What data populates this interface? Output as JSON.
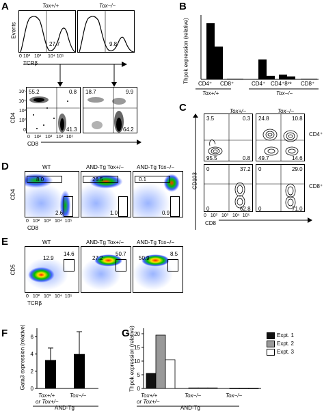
{
  "panels": {
    "A": {
      "label": "A",
      "hist": [
        {
          "genotype": "Tox+/+",
          "value": "27.7"
        },
        {
          "genotype": "Tox−/−",
          "value": "9.8"
        }
      ],
      "ylabel": "Events",
      "xlabel": "TCRβ",
      "ticks": [
        "0",
        "10²",
        "10³",
        "10⁴",
        "10⁵"
      ],
      "dot": [
        {
          "q": [
            "55.2",
            "0.8",
            "",
            "41.3"
          ]
        },
        {
          "q": [
            "18.7",
            "9.9",
            "",
            "64.2"
          ]
        }
      ],
      "dot_ylabel": "CD4",
      "dot_xlabel": "CD8",
      "dot_yticks": [
        "10⁵",
        "10⁴",
        "10³",
        "10²",
        "0"
      ],
      "dot_xticks": [
        "0",
        "10²",
        "10³",
        "10⁴",
        "10⁵"
      ]
    },
    "B": {
      "label": "B",
      "ylabel": "Thpok expression (relative)",
      "groups": [
        "CD4⁺",
        "CD8⁺",
        "CD4⁺",
        "CD4⁺8ⁱⁿᵗ",
        "CD8⁺"
      ],
      "genotypes": [
        "Tox+/+",
        "Tox−/−"
      ]
    },
    "C": {
      "label": "C",
      "genotypes": [
        "Tox+/−",
        "Tox−/−"
      ],
      "rows": [
        "CD4⁺",
        "CD8⁺"
      ],
      "ylabel": "CD103",
      "xlabel": "CD8",
      "q": [
        [
          "3.5",
          "0.3",
          "95.5",
          "0.8"
        ],
        [
          "24.8",
          "10.8",
          "49.7",
          "14.6"
        ],
        [
          "0",
          "37.2",
          "0",
          "62.8"
        ],
        [
          "0",
          "29.0",
          "0",
          "71.0"
        ]
      ],
      "ticks": [
        "0",
        "10²",
        "10³",
        "10⁴",
        "10⁵"
      ]
    },
    "D": {
      "label": "D",
      "headers": [
        "WT",
        "AND-Tg Tox+/−",
        "AND-Tg Tox−/−"
      ],
      "top": [
        "8.0",
        "26.5",
        "0.1"
      ],
      "bottom": [
        "2.6",
        "1.0",
        "0.9"
      ],
      "ylabel": "CD4",
      "xlabel": "CD8",
      "ticks": [
        "0",
        "10²",
        "10³",
        "10⁴",
        "10⁵"
      ]
    },
    "E": {
      "label": "E",
      "headers": [
        "WT",
        "AND-Tg Tox+/−",
        "AND-Tg Tox−/−"
      ],
      "left": [
        "12.9",
        "27.2",
        "50.9"
      ],
      "right": [
        "14.6",
        "50.7",
        "8.5"
      ],
      "ylabel": "CD5",
      "xlabel": "TCRβ",
      "ticks": [
        "0",
        "10²",
        "10³",
        "10⁴",
        "10⁵"
      ]
    },
    "F": {
      "label": "F",
      "ylabel": "Gata3 expression (relative)",
      "bars": [
        {
          "label1": "Tox+/+",
          "label2": "or Tox+/−",
          "value": 3.3,
          "err": 1.4
        },
        {
          "label1": "Tox−/−",
          "label2": "",
          "value": 4.0,
          "err": 2.6
        }
      ],
      "yticks": [
        "0",
        "2",
        "4",
        "6"
      ],
      "footer": "AND-Tg"
    },
    "G": {
      "label": "G",
      "ylabel": "Thpok expression (relative)",
      "yticks": [
        "0",
        "5",
        "10",
        "15",
        "20"
      ],
      "legend": [
        "Expt. 1",
        "Expt. 2",
        "Expt. 3"
      ],
      "groups": [
        {
          "label1": "Tox+/+",
          "label2": "or Tox+/−",
          "values": [
            5.5,
            19.5,
            10.5
          ]
        },
        {
          "label1": "Tox−/−",
          "label2": "",
          "values": [
            0.2,
            0.2,
            0.2
          ]
        },
        {
          "label1": "Tox−/−",
          "label2": "",
          "values": [
            0.1,
            0.1,
            0.1
          ]
        }
      ],
      "footer": "AND-Tg"
    }
  },
  "chart_data": [
    {
      "type": "bar",
      "panel": "B",
      "categories": [
        "Tox+/+ CD4⁺",
        "Tox+/+ CD8⁺",
        "Tox−/− CD4⁺",
        "Tox−/− CD4⁺8ⁱⁿᵗ",
        "Tox−/− CD8⁺"
      ],
      "series": [
        {
          "values": [
            4.8,
            0.05,
            1.7,
            0.4,
            0.05
          ]
        },
        {
          "values": [
            2.8,
            0.05,
            0.3,
            0.25,
            0.05
          ]
        }
      ],
      "ylabel": "Thpok expression (relative)",
      "ylim": [
        0,
        5.5
      ]
    },
    {
      "type": "bar",
      "panel": "F",
      "categories": [
        "Tox+/+ or Tox+/−",
        "Tox−/−"
      ],
      "values": [
        3.3,
        4.0
      ],
      "errors": [
        1.4,
        2.6
      ],
      "ylabel": "Gata3 expression (relative)",
      "ylim": [
        0,
        7
      ]
    },
    {
      "type": "bar",
      "panel": "G",
      "categories": [
        "Tox+/+ or Tox+/−",
        "Tox−/−",
        "Tox−/−"
      ],
      "series": [
        {
          "name": "Expt. 1",
          "color": "#111111",
          "values": [
            5.5,
            0.2,
            0.1
          ]
        },
        {
          "name": "Expt. 2",
          "color": "#999999",
          "values": [
            19.5,
            0.2,
            0.1
          ]
        },
        {
          "name": "Expt. 3",
          "color": "#ffffff",
          "values": [
            10.5,
            0.2,
            0.1
          ]
        }
      ],
      "ylabel": "Thpok expression (relative)",
      "ylim": [
        0,
        22
      ]
    }
  ]
}
